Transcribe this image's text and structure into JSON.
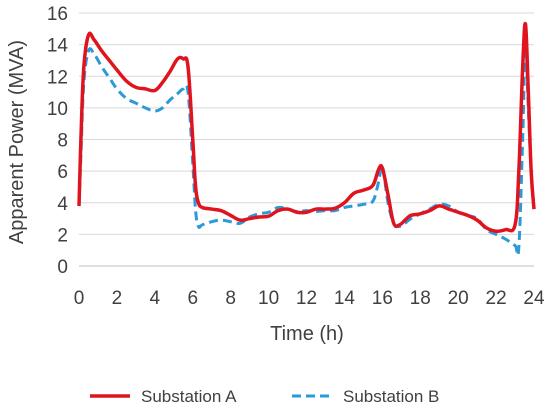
{
  "chart_data": {
    "type": "line",
    "title": "",
    "xlabel": "Time (h)",
    "ylabel": "Apparent Power (MVA)",
    "xlim": [
      0,
      24
    ],
    "ylim": [
      0,
      16
    ],
    "xticks": [
      0,
      2,
      4,
      6,
      8,
      10,
      12,
      14,
      16,
      18,
      20,
      22,
      24
    ],
    "yticks": [
      0,
      2,
      4,
      6,
      8,
      10,
      12,
      14,
      16
    ],
    "grid": "horizontal major gridlines",
    "legend_position": "bottom",
    "series": [
      {
        "name": "Substation A",
        "color": "#e0141e",
        "line_style": "solid",
        "x": [
          0,
          0.1,
          0.25,
          0.5,
          0.8,
          1.2,
          1.6,
          2,
          2.5,
          3,
          3.5,
          4,
          4.4,
          4.8,
          5.2,
          5.5,
          5.75,
          6,
          6.15,
          6.3,
          6.5,
          7,
          7.5,
          8,
          8.5,
          9,
          9.5,
          10,
          10.5,
          11,
          11.5,
          12,
          12.5,
          13,
          13.5,
          14,
          14.5,
          15,
          15.5,
          15.8,
          16,
          16.3,
          16.6,
          16.9,
          17.2,
          17.5,
          18,
          18.5,
          19,
          19.5,
          20,
          20.5,
          21,
          21.5,
          22,
          22.5,
          23,
          23.2,
          23.4,
          23.55,
          23.7,
          23.85,
          24
        ],
        "y": [
          3.8,
          8,
          12.5,
          14.6,
          14.3,
          13.6,
          13,
          12.4,
          11.7,
          11.3,
          11.2,
          11.1,
          11.6,
          12.3,
          13.1,
          13.1,
          12.6,
          8,
          5,
          4,
          3.7,
          3.6,
          3.5,
          3.2,
          2.9,
          3,
          3.1,
          3.15,
          3.5,
          3.6,
          3.4,
          3.4,
          3.6,
          3.6,
          3.65,
          4,
          4.6,
          4.8,
          5.1,
          6.1,
          6.2,
          4.5,
          2.7,
          2.6,
          2.9,
          3.2,
          3.3,
          3.5,
          3.8,
          3.6,
          3.4,
          3.2,
          2.9,
          2.4,
          2.2,
          2.3,
          2.6,
          6,
          12.5,
          15.3,
          11,
          6,
          3.6
        ]
      },
      {
        "name": "Substation B",
        "color": "#2b9ad8",
        "line_style": "dashed",
        "x": [
          0,
          0.1,
          0.25,
          0.5,
          0.8,
          1.2,
          1.6,
          2,
          2.5,
          3,
          3.5,
          4,
          4.4,
          4.8,
          5.2,
          5.5,
          5.75,
          6,
          6.15,
          6.3,
          6.5,
          7,
          7.5,
          8,
          8.5,
          9,
          9.5,
          10,
          10.5,
          11,
          11.5,
          12,
          12.5,
          13,
          13.5,
          14,
          14.5,
          15,
          15.5,
          15.8,
          16,
          16.3,
          16.6,
          16.9,
          17.2,
          17.5,
          18,
          18.5,
          19,
          19.5,
          20,
          20.5,
          21,
          21.5,
          22,
          22.5,
          23,
          23.2,
          23.4,
          23.55,
          23.7,
          23.85,
          24
        ],
        "y": [
          3.8,
          7,
          11.5,
          13.6,
          13.4,
          12.6,
          11.9,
          11.2,
          10.6,
          10.3,
          10,
          9.8,
          10,
          10.5,
          10.9,
          11.2,
          11,
          6.5,
          3.5,
          2.5,
          2.6,
          2.8,
          2.9,
          2.8,
          2.7,
          3.1,
          3.3,
          3.4,
          3.7,
          3.6,
          3.45,
          3.5,
          3.45,
          3.5,
          3.5,
          3.7,
          3.8,
          3.9,
          4.1,
          5.3,
          6.3,
          4,
          2.7,
          2.5,
          2.7,
          3,
          3.3,
          3.6,
          3.9,
          3.8,
          3.4,
          3.2,
          3,
          2.3,
          2,
          1.7,
          1.3,
          1.2,
          8,
          14.1,
          10,
          6,
          3.6
        ]
      }
    ]
  }
}
